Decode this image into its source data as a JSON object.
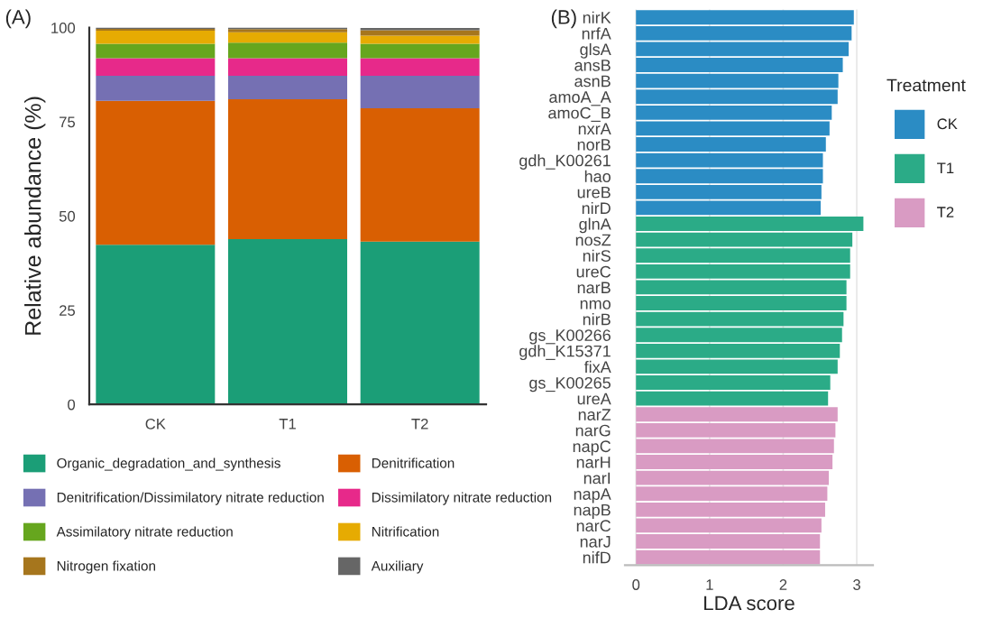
{
  "chart_data": [
    {
      "type": "bar",
      "title": "(A)",
      "ylabel": "Relative abundance (%)",
      "categories": [
        "CK",
        "T1",
        "T2"
      ],
      "stacked": true,
      "ylim": [
        0,
        100
      ],
      "yticks": [
        0,
        25,
        50,
        75,
        100
      ],
      "grid": false,
      "legend": "bottom",
      "series": [
        {
          "name": "Organic_degradation_and_synthesis",
          "color": "#1b9e77",
          "values": [
            42.4,
            43.9,
            43.2
          ]
        },
        {
          "name": "Denitrification",
          "color": "#d95f02",
          "values": [
            38.2,
            37.1,
            35.4
          ]
        },
        {
          "name": "Denitrification/Dissimilatory nitrate reduction",
          "color": "#7570b3",
          "values": [
            6.6,
            6.2,
            8.6
          ]
        },
        {
          "name": "Dissimilatory nitrate reduction",
          "color": "#e7298a",
          "values": [
            4.7,
            4.7,
            4.7
          ]
        },
        {
          "name": "Assimilatory nitrate reduction",
          "color": "#66a61e",
          "values": [
            3.8,
            4.1,
            3.8
          ]
        },
        {
          "name": "Nitrification",
          "color": "#e6ab02",
          "values": [
            3.5,
            2.8,
            2.2
          ]
        },
        {
          "name": "Nitrogen fixation",
          "color": "#a6761d",
          "values": [
            0.5,
            0.8,
            1.4
          ]
        },
        {
          "name": "Auxiliary",
          "color": "#666666",
          "values": [
            0.3,
            0.4,
            0.6
          ]
        }
      ]
    },
    {
      "type": "bar",
      "title": "(B)",
      "xlabel": "LDA score",
      "orientation": "horizontal",
      "legend_title": "Treatment",
      "legend": "right",
      "grid": "x",
      "xlim": [
        -0.15,
        3.22
      ],
      "xticks": [
        0,
        1,
        2,
        3
      ],
      "categories": [
        "nirK",
        "nrfA",
        "glsA",
        "ansB",
        "asnB",
        "amoA_A",
        "amoC_B",
        "nxrA",
        "norB",
        "gdh_K00261",
        "hao",
        "ureB",
        "nirD",
        "glnA",
        "nosZ",
        "nirS",
        "ureC",
        "narB",
        "nmo",
        "nirB",
        "gs_K00266",
        "gdh_K15371",
        "fixA",
        "gs_K00265",
        "ureA",
        "narZ",
        "narG",
        "napC",
        "narH",
        "narI",
        "napA",
        "napB",
        "narC",
        "narJ",
        "nifD"
      ],
      "series": [
        {
          "name": "CK",
          "color": "#2b8cc4",
          "values": [
            2.96,
            2.93,
            2.89,
            2.81,
            2.75,
            2.74,
            2.66,
            2.63,
            2.58,
            2.54,
            2.54,
            2.52,
            2.51,
            null,
            null,
            null,
            null,
            null,
            null,
            null,
            null,
            null,
            null,
            null,
            null,
            null,
            null,
            null,
            null,
            null,
            null,
            null,
            null,
            null,
            null
          ]
        },
        {
          "name": "T1",
          "color": "#2bab87",
          "values": [
            null,
            null,
            null,
            null,
            null,
            null,
            null,
            null,
            null,
            null,
            null,
            null,
            null,
            3.09,
            2.94,
            2.91,
            2.91,
            2.86,
            2.86,
            2.82,
            2.8,
            2.77,
            2.74,
            2.64,
            2.61,
            null,
            null,
            null,
            null,
            null,
            null,
            null,
            null,
            null,
            null
          ]
        },
        {
          "name": "T2",
          "color": "#d99bc3",
          "values": [
            null,
            null,
            null,
            null,
            null,
            null,
            null,
            null,
            null,
            null,
            null,
            null,
            null,
            null,
            null,
            null,
            null,
            null,
            null,
            null,
            null,
            null,
            null,
            null,
            null,
            2.74,
            2.71,
            2.69,
            2.67,
            2.62,
            2.6,
            2.57,
            2.52,
            2.5,
            2.5
          ]
        }
      ]
    }
  ]
}
